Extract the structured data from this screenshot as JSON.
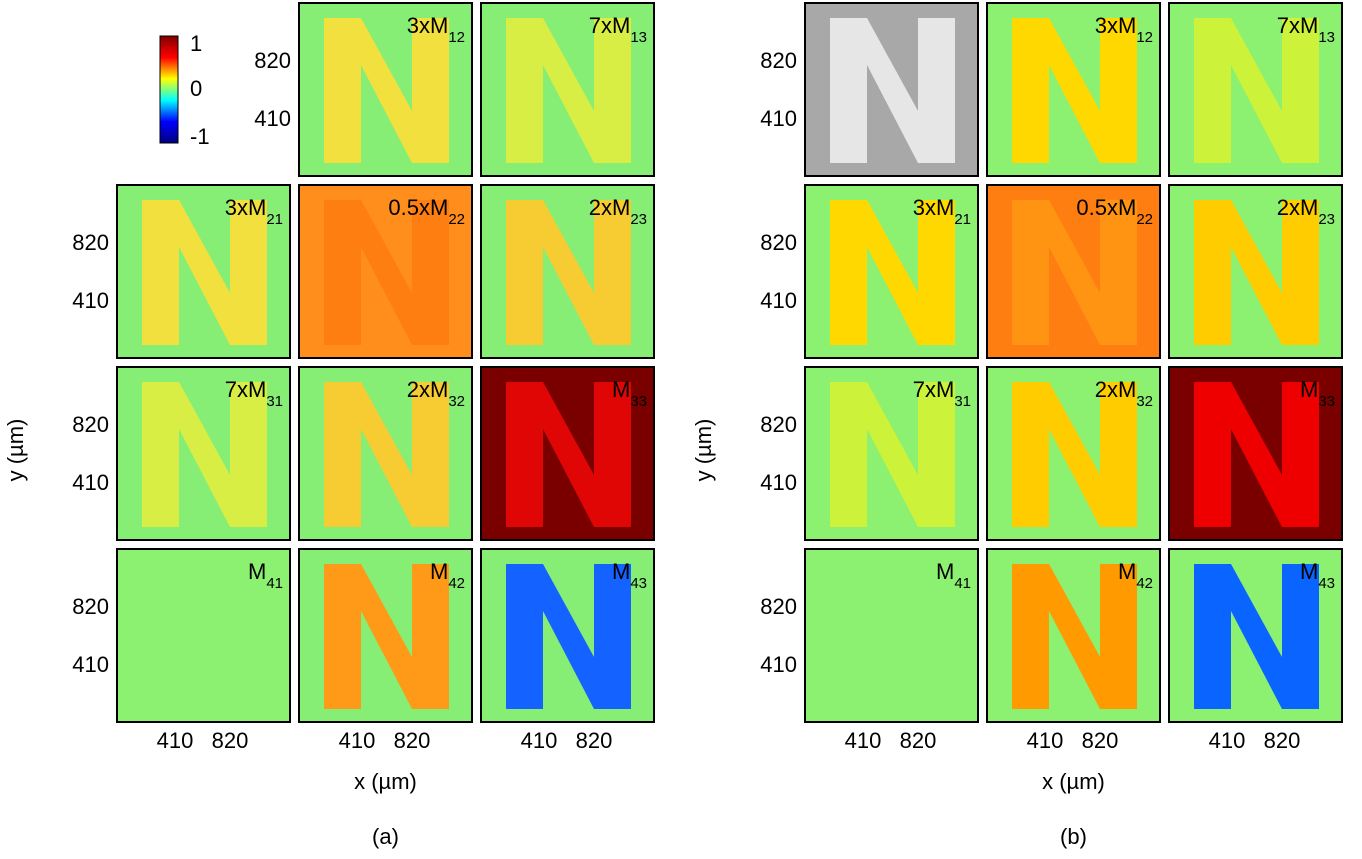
{
  "colorbar": {
    "ticks": [
      "1",
      "0",
      "-1"
    ],
    "colormap": [
      "#00007f",
      "#0000ff",
      "#00ffff",
      "#ffff00",
      "#ff0000",
      "#7f0000"
    ]
  },
  "panels": [
    {
      "label": "(a)",
      "x_axis_label": "x (µm)",
      "y_axis_label": "y (µm)",
      "xticks": [
        "410",
        "820"
      ],
      "yticks": [
        "820",
        "410"
      ],
      "rows": [
        [
          null,
          {
            "label": "3xM",
            "sub": "12",
            "background": "#86ee74",
            "letter": "#f2e03e",
            "text_color": "#000000"
          },
          {
            "label": "7xM",
            "sub": "13",
            "background": "#86ee74",
            "letter": "#d8ee44",
            "text_color": "#000000"
          }
        ],
        [
          {
            "label": "3xM",
            "sub": "21",
            "background": "#86ee74",
            "letter": "#f2e03e",
            "text_color": "#000000"
          },
          {
            "label": "0.5xM",
            "sub": "22",
            "background": "#ff8e1c",
            "letter": "#ff7e12",
            "text_color": "#ffffff"
          },
          {
            "label": "2xM",
            "sub": "23",
            "background": "#86ee74",
            "letter": "#f6cc32",
            "text_color": "#000000"
          }
        ],
        [
          {
            "label": "7xM",
            "sub": "31",
            "background": "#86ee74",
            "letter": "#d8ee44",
            "text_color": "#000000"
          },
          {
            "label": "2xM",
            "sub": "32",
            "background": "#86ee74",
            "letter": "#f6cc32",
            "text_color": "#000000"
          },
          {
            "label": "M",
            "sub": "33",
            "background": "#7a0000",
            "letter": "#e00606",
            "text_color": "#ffffff"
          }
        ],
        [
          {
            "label": "M",
            "sub": "41",
            "background": "#8cf070",
            "letter": "#8cf070",
            "text_color": "#000000"
          },
          {
            "label": "M",
            "sub": "42",
            "background": "#86ee74",
            "letter": "#ff9a18",
            "text_color": "#000000"
          },
          {
            "label": "M",
            "sub": "43",
            "background": "#86ee74",
            "letter": "#1462ff",
            "text_color": "#000000"
          }
        ]
      ]
    },
    {
      "label": "(b)",
      "x_axis_label": "x (µm)",
      "y_axis_label": "y (µm)",
      "xticks": [
        "410",
        "820"
      ],
      "yticks": [
        "820",
        "410"
      ],
      "rows": [
        [
          {
            "background": "#a8a8a8",
            "letter": "#e6e6e6"
          },
          {
            "label": "3xM",
            "sub": "12",
            "background": "#8cf070",
            "letter": "#ffd800",
            "text_color": "#000000"
          },
          {
            "label": "7xM",
            "sub": "13",
            "background": "#8cf070",
            "letter": "#ccf23a",
            "text_color": "#000000"
          }
        ],
        [
          {
            "label": "3xM",
            "sub": "21",
            "background": "#8cf070",
            "letter": "#ffd800",
            "text_color": "#000000"
          },
          {
            "label": "0.5xM",
            "sub": "22",
            "background": "#ff7e12",
            "letter": "#ff9412",
            "text_color": "#ffffff"
          },
          {
            "label": "2xM",
            "sub": "23",
            "background": "#8cf070",
            "letter": "#ffcc00",
            "text_color": "#000000"
          }
        ],
        [
          {
            "label": "7xM",
            "sub": "31",
            "background": "#8cf070",
            "letter": "#ccf23a",
            "text_color": "#000000"
          },
          {
            "label": "2xM",
            "sub": "32",
            "background": "#8cf070",
            "letter": "#ffcc00",
            "text_color": "#000000"
          },
          {
            "label": "M",
            "sub": "33",
            "background": "#7a0000",
            "letter": "#ee0000",
            "text_color": "#ffffff"
          }
        ],
        [
          {
            "label": "M",
            "sub": "41",
            "background": "#8cf070",
            "letter": "#8cf070",
            "text_color": "#000000"
          },
          {
            "label": "M",
            "sub": "42",
            "background": "#8cf070",
            "letter": "#ff9a00",
            "text_color": "#000000"
          },
          {
            "label": "M",
            "sub": "43",
            "background": "#8cf070",
            "letter": "#0a64ff",
            "text_color": "#000000"
          }
        ]
      ]
    }
  ]
}
